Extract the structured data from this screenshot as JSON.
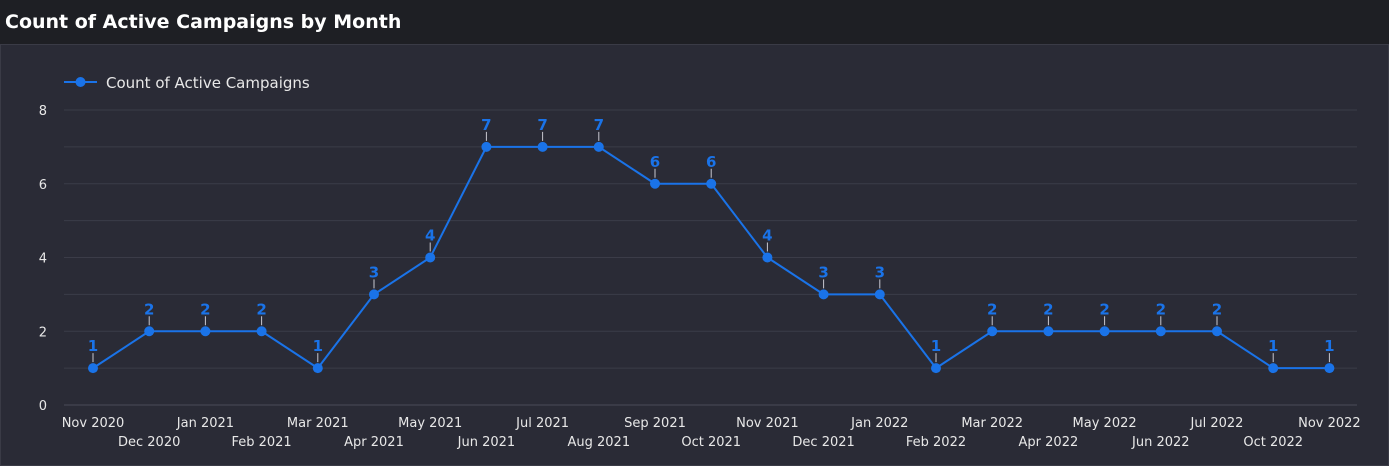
{
  "title": "Count of Active Campaigns by Month",
  "colors": {
    "background": "#1e1f24",
    "panel": "#2a2b36",
    "series": "#1a73e8",
    "grid": "#3b3c48",
    "text": "#e8e8e8"
  },
  "chart_data": {
    "type": "line",
    "title": "Count of Active Campaigns by Month",
    "xlabel": "",
    "ylabel": "",
    "ylim": [
      0,
      8
    ],
    "yticks": [
      0,
      2,
      4,
      6,
      8
    ],
    "grid": true,
    "legend_position": "top-left",
    "categories": [
      "Nov 2020",
      "Dec 2020",
      "Jan 2021",
      "Feb 2021",
      "Mar 2021",
      "Apr 2021",
      "May 2021",
      "Jun 2021",
      "Jul 2021",
      "Aug 2021",
      "Sep 2021",
      "Oct 2021",
      "Nov 2021",
      "Dec 2021",
      "Jan 2022",
      "Feb 2022",
      "Mar 2022",
      "Apr 2022",
      "May 2022",
      "Jun 2022",
      "Jul 2022",
      "Oct 2022",
      "Nov 2022"
    ],
    "series": [
      {
        "name": "Count of Active Campaigns",
        "values": [
          1,
          2,
          2,
          2,
          1,
          3,
          4,
          7,
          7,
          7,
          6,
          6,
          4,
          3,
          3,
          1,
          2,
          2,
          2,
          2,
          2,
          1,
          1
        ],
        "data_labels": [
          "1",
          "2",
          "2",
          "2",
          "1",
          "3",
          "4",
          "7",
          "7",
          "7",
          "6",
          "6",
          "4",
          "3",
          "3",
          "1",
          "2",
          "2",
          "2",
          "2",
          "2",
          "1",
          "1"
        ]
      }
    ]
  }
}
